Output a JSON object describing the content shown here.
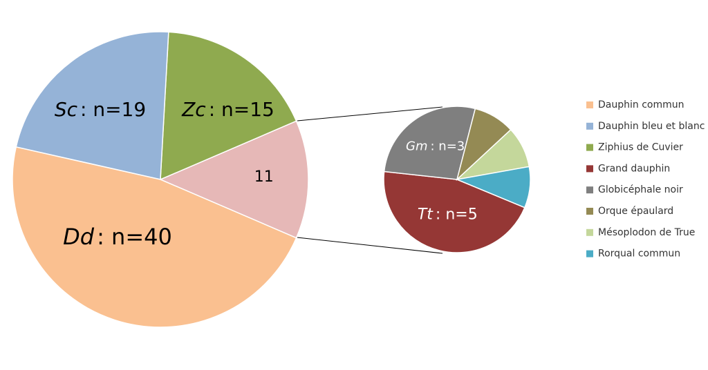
{
  "chart_data": {
    "type": "pie-of-pie",
    "categories": [
      "Dauphin commun",
      "Dauphin bleu et blanc",
      "Ziphius de Cuvier",
      "Grand dauphin",
      "Globicéphale noir",
      "Orque épaulard",
      "Mésoplodon de True",
      "Rorqual commun"
    ],
    "values": [
      40,
      19,
      15,
      5,
      3,
      1,
      1,
      1
    ],
    "abbreviations": [
      "Dd",
      "Sc",
      "Zc",
      "Tt",
      "Gm",
      null,
      null,
      null
    ],
    "value_labels": [
      ": n=40",
      ": n=19",
      ": n=15",
      ": n=5",
      ": n=3",
      null,
      null,
      null
    ],
    "colors": [
      "#fac090",
      "#95b3d7",
      "#8faa4f",
      "#953735",
      "#7f7f7f",
      "#948a54",
      "#c4d79b",
      "#4bacc6"
    ],
    "split_index": 3,
    "other_value": 11,
    "other_color": "#e6b8b7",
    "legend_position": "right"
  }
}
